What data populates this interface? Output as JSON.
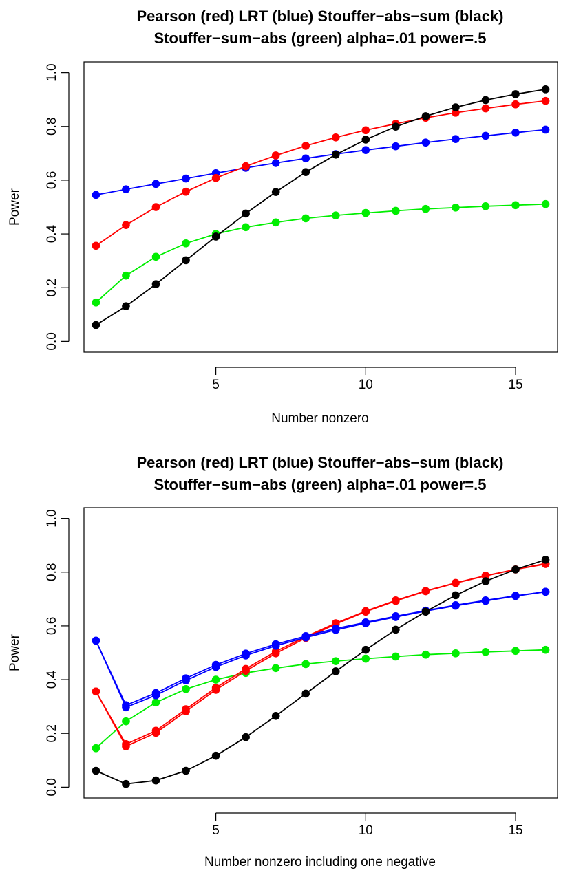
{
  "chart_data": [
    {
      "type": "line",
      "title_lines": [
        "Pearson (red) LRT (blue) Stouffer−abs−sum (black)",
        "Stouffer−sum−abs (green) alpha=.01 power=.5"
      ],
      "xlabel": "Number nonzero",
      "ylabel": "Power",
      "xlim": [
        0.6,
        16.4
      ],
      "ylim": [
        -0.04,
        1.04
      ],
      "xticks": [
        5,
        10,
        15
      ],
      "yticks": [
        0.0,
        0.2,
        0.4,
        0.6,
        0.8,
        1.0
      ],
      "ytick_labels": [
        "0.0",
        "0.2",
        "0.4",
        "0.6",
        "0.8",
        "1.0"
      ],
      "grid": false,
      "x": [
        1,
        2,
        3,
        4,
        5,
        6,
        7,
        8,
        9,
        10,
        11,
        12,
        13,
        14,
        15,
        16
      ],
      "series": [
        {
          "color": "#00ee00",
          "values": [
            0.145,
            0.245,
            0.315,
            0.365,
            0.4,
            0.425,
            0.443,
            0.458,
            0.469,
            0.478,
            0.486,
            0.493,
            0.498,
            0.503,
            0.507,
            0.511
          ]
        },
        {
          "color": "#0000ff",
          "values": [
            0.545,
            0.566,
            0.586,
            0.606,
            0.626,
            0.646,
            0.664,
            0.681,
            0.697,
            0.712,
            0.726,
            0.74,
            0.753,
            0.765,
            0.777,
            0.788
          ]
        },
        {
          "color": "#ff0000",
          "values": [
            0.356,
            0.433,
            0.5,
            0.557,
            0.608,
            0.652,
            0.692,
            0.728,
            0.759,
            0.786,
            0.81,
            0.832,
            0.851,
            0.867,
            0.882,
            0.895
          ]
        },
        {
          "color": "#000000",
          "values": [
            0.061,
            0.131,
            0.213,
            0.302,
            0.39,
            0.476,
            0.556,
            0.63,
            0.695,
            0.751,
            0.799,
            0.838,
            0.871,
            0.898,
            0.92,
            0.938
          ]
        }
      ]
    },
    {
      "type": "line",
      "title_lines": [
        "Pearson (red) LRT (blue) Stouffer−abs−sum (black)",
        "Stouffer−sum−abs (green) alpha=.01 power=.5"
      ],
      "xlabel": "Number nonzero including one negative",
      "ylabel": "Power",
      "xlim": [
        0.6,
        16.4
      ],
      "ylim": [
        -0.04,
        1.04
      ],
      "xticks": [
        5,
        10,
        15
      ],
      "yticks": [
        0.0,
        0.2,
        0.4,
        0.6,
        0.8,
        1.0
      ],
      "ytick_labels": [
        "0.0",
        "0.2",
        "0.4",
        "0.6",
        "0.8",
        "1.0"
      ],
      "grid": false,
      "x": [
        1,
        2,
        3,
        4,
        5,
        6,
        7,
        8,
        9,
        10,
        11,
        12,
        13,
        14,
        15,
        16
      ],
      "series": [
        {
          "color": "#00ee00",
          "values": [
            0.145,
            0.245,
            0.315,
            0.365,
            0.4,
            0.425,
            0.443,
            0.458,
            0.469,
            0.478,
            0.486,
            0.493,
            0.498,
            0.503,
            0.507,
            0.511
          ]
        },
        {
          "color": "#ff0000",
          "values": [
            0.356,
            0.16,
            0.21,
            0.29,
            0.37,
            0.44,
            0.505,
            0.56,
            0.61,
            0.655,
            0.695,
            0.73,
            0.76,
            0.787,
            0.81,
            0.832
          ]
        },
        {
          "color": "#ff0000",
          "values": [
            0.356,
            0.152,
            0.202,
            0.282,
            0.362,
            0.433,
            0.498,
            0.555,
            0.607,
            0.653,
            0.693,
            0.729,
            0.759,
            0.786,
            0.81,
            0.83
          ]
        },
        {
          "color": "#0000ff",
          "values": [
            0.545,
            0.305,
            0.35,
            0.405,
            0.455,
            0.497,
            0.532,
            0.562,
            0.59,
            0.613,
            0.636,
            0.657,
            0.677,
            0.695,
            0.712,
            0.727
          ]
        },
        {
          "color": "#0000ff",
          "values": [
            0.545,
            0.297,
            0.342,
            0.397,
            0.447,
            0.49,
            0.526,
            0.557,
            0.585,
            0.61,
            0.633,
            0.655,
            0.675,
            0.693,
            0.711,
            0.727
          ]
        },
        {
          "color": "#000000",
          "values": [
            0.061,
            0.012,
            0.025,
            0.061,
            0.117,
            0.186,
            0.265,
            0.348,
            0.431,
            0.511,
            0.586,
            0.653,
            0.714,
            0.766,
            0.81,
            0.846
          ]
        }
      ]
    }
  ]
}
